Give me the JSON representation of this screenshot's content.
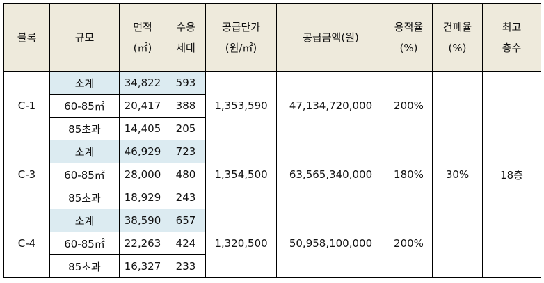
{
  "headers": {
    "block": "블록",
    "scale": "규모",
    "area_line1": "면적",
    "area_line2": "(㎡)",
    "households_line1": "수용",
    "households_line2": "세대",
    "unit_price_line1": "공급단가",
    "unit_price_line2": "(원/㎡)",
    "supply_amount": "공급금액(원)",
    "far_line1": "용적율",
    "far_line2": "(%)",
    "bcr_line1": "건폐율",
    "bcr_line2": "(%)",
    "max_floors_line1": "최고",
    "max_floors_line2": "층수"
  },
  "blocks": [
    {
      "name": "C-1",
      "unit_price": "1,353,590",
      "supply_amount": "47,134,720,000",
      "far": "200%",
      "rows": [
        {
          "scale": "소계",
          "area": "34,822",
          "households": "593"
        },
        {
          "scale": "60-85㎡",
          "area": "20,417",
          "households": "388"
        },
        {
          "scale": "85초과",
          "area": "14,405",
          "households": "205"
        }
      ]
    },
    {
      "name": "C-3",
      "unit_price": "1,354,500",
      "supply_amount": "63,565,340,000",
      "far": "180%",
      "rows": [
        {
          "scale": "소계",
          "area": "46,929",
          "households": "723"
        },
        {
          "scale": "60-85㎡",
          "area": "28,000",
          "households": "480"
        },
        {
          "scale": "85초과",
          "area": "18,929",
          "households": "243"
        }
      ]
    },
    {
      "name": "C-4",
      "unit_price": "1,320,500",
      "supply_amount": "50,958,100,000",
      "far": "200%",
      "rows": [
        {
          "scale": "소계",
          "area": "38,590",
          "households": "657"
        },
        {
          "scale": "60-85㎡",
          "area": "22,263",
          "households": "424"
        },
        {
          "scale": "85초과",
          "area": "16,327",
          "households": "233"
        }
      ]
    }
  ],
  "bcr": "30%",
  "max_floors": "18층"
}
